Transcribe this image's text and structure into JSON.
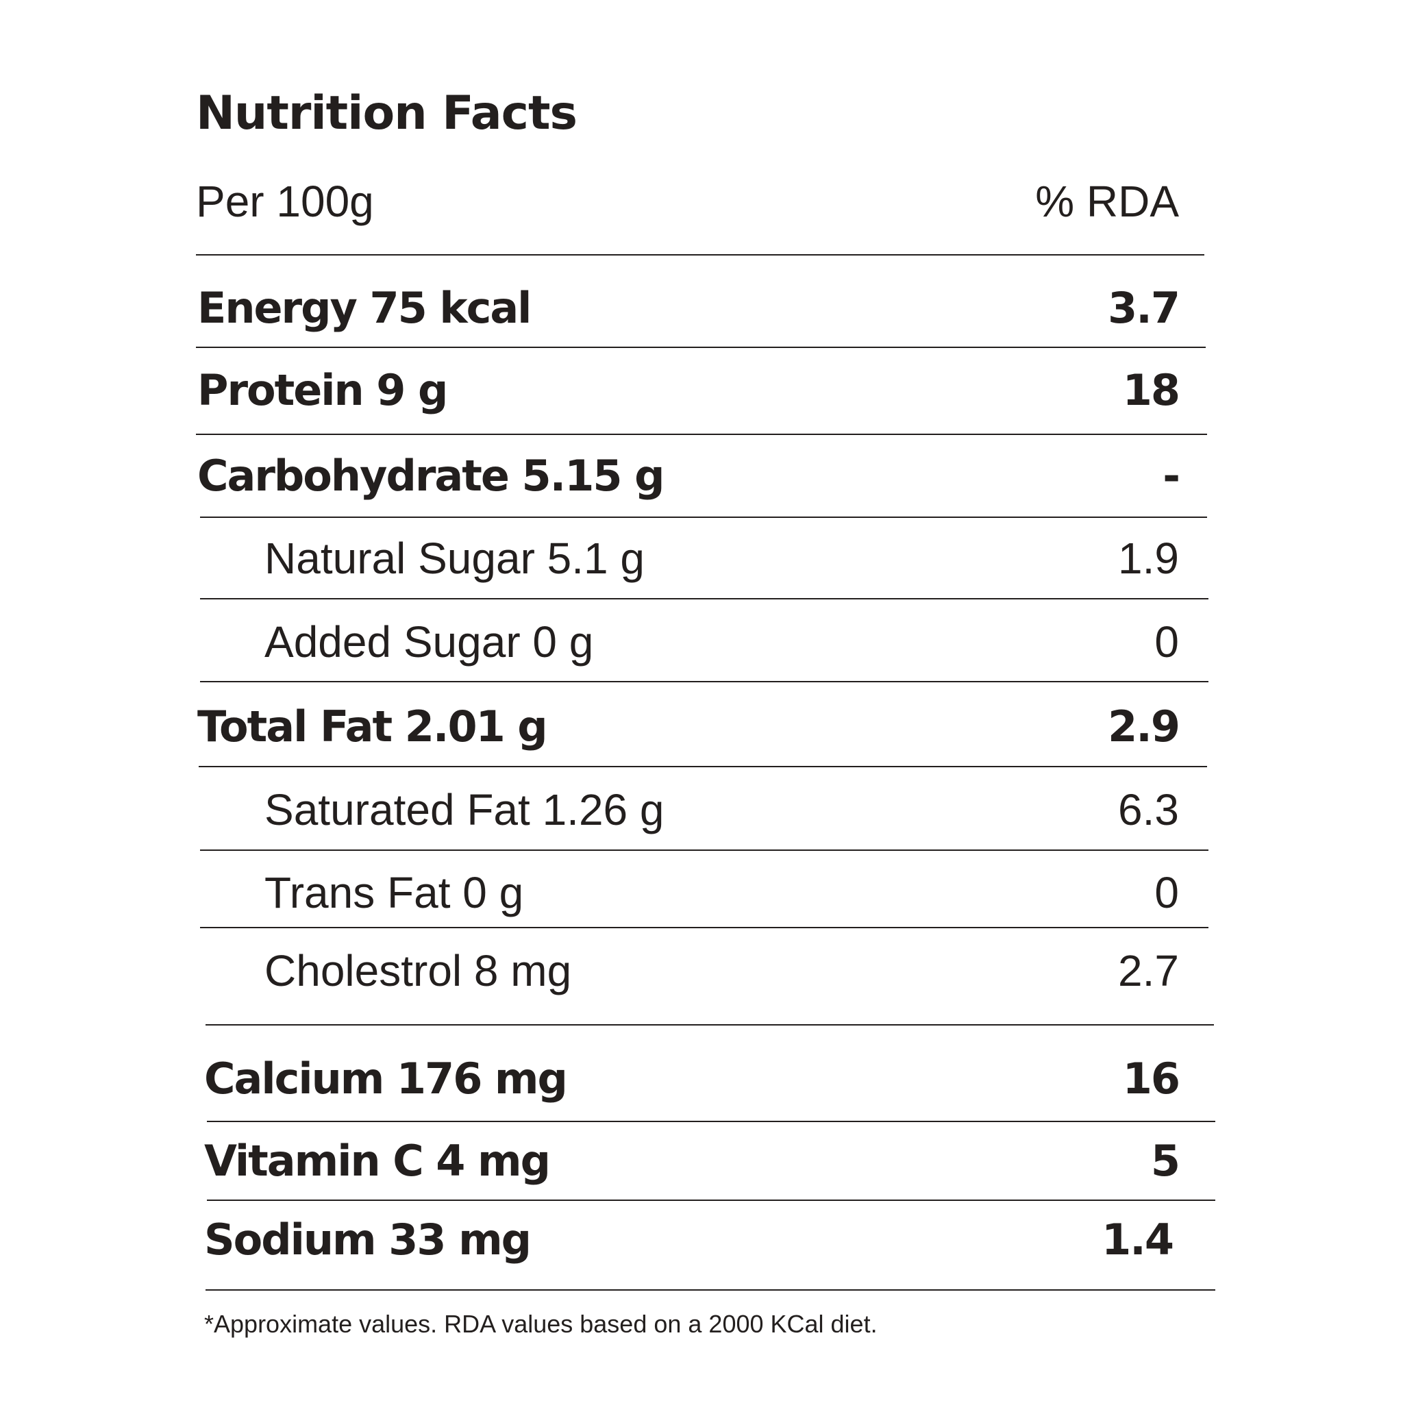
{
  "title": "Nutrition Facts",
  "header": {
    "per_label": "Per 100g",
    "rda_label": "% RDA"
  },
  "rows": [
    {
      "label": "Energy 75 kcal",
      "rda": "3.7",
      "style": "bold"
    },
    {
      "label": "Protein 9 g",
      "rda": "18",
      "style": "bold"
    },
    {
      "label": "Carbohydrate 5.15 g",
      "rda": "-",
      "style": "bold"
    },
    {
      "label": "Natural Sugar 5.1 g",
      "rda": "1.9",
      "style": "light"
    },
    {
      "label": "Added Sugar 0 g",
      "rda": "0",
      "style": "light"
    },
    {
      "label": "Total Fat 2.01 g",
      "rda": "2.9",
      "style": "bold"
    },
    {
      "label": "Saturated Fat 1.26 g",
      "rda": "6.3",
      "style": "light"
    },
    {
      "label": "Trans Fat 0 g",
      "rda": "0",
      "style": "light"
    },
    {
      "label": "Cholestrol 8 mg",
      "rda": "2.7",
      "style": "light"
    },
    {
      "label": "Calcium 176 mg",
      "rda": "16",
      "style": "bold"
    },
    {
      "label": "Vitamin C 4 mg",
      "rda": "5",
      "style": "bold"
    },
    {
      "label": "Sodium 33 mg",
      "rda": "1.4",
      "style": "bold"
    }
  ],
  "footnote": "*Approximate values. RDA values based on a 2000 KCal diet."
}
